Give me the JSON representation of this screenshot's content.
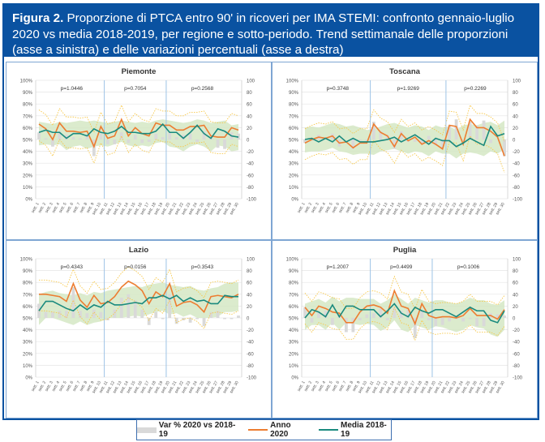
{
  "figure": {
    "label": "Figura 2.",
    "caption": " Proporzione di PTCA entro 90' in ricoveri per IMA STEMI: confronto gennaio-luglio 2020 vs media 2018-2019, per regione e sotto-periodo. Trend settimanale delle proporzioni (asse a sinistra) e delle variazioni percentuali (asse a destra)"
  },
  "colors": {
    "header_bg": "#0a52a1",
    "anno2020": "#ed7d31",
    "media": "#1a8a7e",
    "band": "#d5e8c4",
    "ci_dotted": "#f7c84a",
    "var_bar": "#d9d9d9",
    "period_line": "#9dc3e6"
  },
  "legend": {
    "items": [
      {
        "label": "Var % 2020 vs 2018-19",
        "type": "bar"
      },
      {
        "label": "Anno 2020",
        "type": "line"
      },
      {
        "label": "Media 2018-19",
        "type": "line"
      }
    ]
  },
  "chart_data": [
    {
      "type": "line",
      "title": "Piemonte",
      "left_axis": {
        "ticks": [
          "0%",
          "10%",
          "20%",
          "30%",
          "40%",
          "50%",
          "60%",
          "70%",
          "80%",
          "90%",
          "100%"
        ],
        "ylim": [
          0,
          100
        ]
      },
      "right_axis": {
        "ticks": [
          "-100",
          "-80",
          "-60",
          "-40",
          "-20",
          "0",
          "20",
          "40",
          "60",
          "80",
          "100"
        ],
        "ylim": [
          -100,
          100
        ]
      },
      "x_labels_note": "weekly date ranges, gennaio-luglio (illegible)",
      "period_breaks": [
        9,
        18
      ],
      "p_values": [
        "p=1.0446",
        "p=0.7054",
        "p=0.2568"
      ],
      "series": [
        {
          "name": "Anno 2020",
          "values": [
            63,
            59,
            50,
            64,
            57,
            57,
            56,
            57,
            44,
            61,
            51,
            53,
            67,
            53,
            60,
            55,
            53,
            64,
            62,
            62,
            58,
            58,
            61,
            61,
            62,
            53,
            52,
            52,
            60,
            58
          ]
        },
        {
          "name": "Media 2018-19",
          "values": [
            56,
            58,
            56,
            56,
            51,
            55,
            55,
            53,
            59,
            56,
            55,
            57,
            61,
            56,
            56,
            55,
            55,
            57,
            63,
            56,
            56,
            51,
            56,
            62,
            55,
            51,
            59,
            57,
            53,
            52
          ]
        },
        {
          "name": "Banda superiore",
          "values": [
            65,
            64,
            63,
            65,
            64,
            65,
            66,
            65,
            66,
            65,
            64,
            65,
            66,
            65,
            64,
            65,
            64,
            66,
            67,
            66,
            65,
            64,
            65,
            67,
            66,
            64,
            65,
            66,
            62,
            63
          ]
        },
        {
          "name": "Banda inferiore",
          "values": [
            45,
            46,
            45,
            46,
            41,
            44,
            45,
            42,
            44,
            45,
            44,
            46,
            48,
            45,
            44,
            45,
            44,
            47,
            48,
            44,
            43,
            40,
            44,
            46,
            44,
            40,
            45,
            44,
            40,
            41
          ]
        },
        {
          "name": "Var % 2020 vs 2018-19",
          "values": [
            12,
            2,
            -12,
            14,
            8,
            4,
            2,
            8,
            -28,
            10,
            -8,
            -8,
            12,
            -6,
            8,
            -6,
            -4,
            10,
            4,
            12,
            4,
            8,
            10,
            -4,
            14,
            4,
            -14,
            -16,
            12,
            10
          ]
        }
      ]
    },
    {
      "type": "line",
      "title": "Toscana",
      "left_axis": {
        "ticks": [
          "0%",
          "10%",
          "20%",
          "30%",
          "40%",
          "50%",
          "60%",
          "70%",
          "80%",
          "90%",
          "100%"
        ],
        "ylim": [
          0,
          100
        ]
      },
      "right_axis": {
        "ticks": [
          "-100",
          "-80",
          "-60",
          "-40",
          "-20",
          "0",
          "20",
          "40",
          "60",
          "80",
          "100"
        ],
        "ylim": [
          -100,
          100
        ]
      },
      "x_labels_note": "weekly date ranges, gennaio-luglio (illegible)",
      "period_breaks": [
        9,
        20
      ],
      "p_values": [
        "p=0.3748",
        "p=1.9269",
        "p=0.2269"
      ],
      "series": [
        {
          "name": "Anno 2020",
          "values": [
            47,
            50,
            52,
            51,
            53,
            47,
            48,
            43,
            47,
            47,
            63,
            56,
            53,
            44,
            55,
            49,
            52,
            46,
            49,
            46,
            42,
            62,
            61,
            46,
            67,
            60,
            60,
            57,
            52,
            36
          ]
        },
        {
          "name": "Media 2018-19",
          "values": [
            50,
            51,
            48,
            51,
            48,
            53,
            48,
            51,
            48,
            48,
            48,
            49,
            50,
            52,
            48,
            51,
            54,
            50,
            46,
            51,
            49,
            49,
            44,
            47,
            51,
            48,
            45,
            61,
            53,
            55
          ]
        },
        {
          "name": "Banda superiore",
          "values": [
            60,
            61,
            60,
            62,
            64,
            63,
            61,
            62,
            60,
            58,
            59,
            61,
            63,
            64,
            62,
            60,
            62,
            61,
            58,
            62,
            60,
            61,
            58,
            62,
            63,
            62,
            64,
            65,
            62,
            66
          ]
        },
        {
          "name": "Banda inferiore",
          "values": [
            39,
            40,
            40,
            41,
            43,
            40,
            39,
            37,
            38,
            38,
            37,
            40,
            41,
            42,
            40,
            38,
            40,
            39,
            36,
            40,
            38,
            38,
            34,
            38,
            39,
            38,
            36,
            40,
            38,
            42
          ]
        },
        {
          "name": "Var % 2020 vs 2018-19",
          "values": [
            -6,
            -2,
            8,
            0,
            10,
            -12,
            0,
            -16,
            -2,
            -2,
            30,
            14,
            6,
            -16,
            14,
            -4,
            -4,
            -8,
            6,
            -10,
            -14,
            24,
            34,
            -2,
            30,
            24,
            32,
            -6,
            0,
            -28
          ]
        }
      ]
    },
    {
      "type": "line",
      "title": "Lazio",
      "left_axis": {
        "ticks": [
          "0%",
          "10%",
          "20%",
          "30%",
          "40%",
          "50%",
          "60%",
          "70%",
          "80%",
          "90%",
          "100%"
        ],
        "ylim": [
          0,
          100
        ]
      },
      "right_axis": {
        "ticks": [
          "-100",
          "-80",
          "-60",
          "-40",
          "-20",
          "0",
          "20",
          "40",
          "60",
          "80",
          "100"
        ],
        "ylim": [
          -100,
          100
        ]
      },
      "x_labels_note": "weekly date ranges, gennaio-luglio (illegible)",
      "period_breaks": [
        9,
        18
      ],
      "p_values": [
        "p=0.4343",
        "p=0.0156",
        "p=0.3543"
      ],
      "series": [
        {
          "name": "Anno 2020",
          "values": [
            70,
            70,
            69,
            68,
            64,
            79,
            65,
            59,
            69,
            62,
            63,
            68,
            76,
            81,
            78,
            73,
            62,
            72,
            68,
            79,
            60,
            63,
            64,
            61,
            55,
            68,
            69,
            68,
            67,
            70
          ]
        },
        {
          "name": "Media 2018-19",
          "values": [
            56,
            64,
            64,
            61,
            58,
            56,
            61,
            57,
            61,
            59,
            64,
            61,
            61,
            62,
            63,
            62,
            67,
            67,
            69,
            66,
            69,
            64,
            67,
            64,
            65,
            62,
            62,
            69,
            68,
            68
          ]
        },
        {
          "name": "Banda superiore",
          "values": [
            70,
            72,
            73,
            71,
            70,
            69,
            71,
            69,
            72,
            71,
            73,
            74,
            75,
            76,
            77,
            76,
            78,
            79,
            80,
            78,
            77,
            76,
            77,
            74,
            73,
            75,
            76,
            79,
            80,
            80
          ]
        },
        {
          "name": "Banda inferiore",
          "values": [
            44,
            50,
            50,
            48,
            46,
            44,
            47,
            44,
            46,
            47,
            50,
            50,
            50,
            51,
            52,
            51,
            53,
            55,
            56,
            53,
            54,
            51,
            53,
            50,
            50,
            50,
            51,
            55,
            55,
            56
          ]
        },
        {
          "name": "Var % 2020 vs 2018-19",
          "values": [
            24,
            10,
            10,
            12,
            12,
            52,
            12,
            8,
            14,
            10,
            -4,
            14,
            34,
            40,
            30,
            14,
            -12,
            10,
            -2,
            40,
            -10,
            -4,
            -8,
            -2,
            -14,
            10,
            12,
            -2,
            -2,
            4
          ]
        }
      ]
    },
    {
      "type": "line",
      "title": "Puglia",
      "left_axis": {
        "ticks": [
          "0%",
          "10%",
          "20%",
          "30%",
          "40%",
          "50%",
          "60%",
          "70%",
          "80%",
          "90%",
          "100%"
        ],
        "ylim": [
          0,
          100
        ]
      },
      "right_axis": {
        "ticks": [
          "-100",
          "-80",
          "-60",
          "-40",
          "-20",
          "0",
          "20",
          "40",
          "60",
          "80",
          "100"
        ],
        "ylim": [
          -100,
          100
        ]
      },
      "x_labels_note": "weekly date ranges, gennaio-luglio (illegible)",
      "period_breaks": [
        9,
        18
      ],
      "p_values": [
        "p=1.2007",
        "p=0.4499",
        "p=0.1006"
      ],
      "series": [
        {
          "name": "Anno 2020",
          "values": [
            59,
            52,
            60,
            58,
            55,
            54,
            46,
            46,
            55,
            60,
            61,
            59,
            54,
            73,
            60,
            58,
            45,
            62,
            52,
            50,
            51,
            51,
            50,
            52,
            58,
            52,
            52,
            52,
            49,
            57
          ]
        },
        {
          "name": "Media 2018-19",
          "values": [
            50,
            57,
            55,
            51,
            61,
            51,
            60,
            60,
            57,
            57,
            57,
            51,
            56,
            62,
            54,
            51,
            59,
            56,
            54,
            57,
            57,
            54,
            51,
            55,
            59,
            56,
            56,
            48,
            46,
            56
          ]
        },
        {
          "name": "Banda superiore",
          "values": [
            62,
            64,
            66,
            63,
            68,
            64,
            67,
            67,
            66,
            66,
            66,
            62,
            65,
            70,
            66,
            62,
            67,
            65,
            63,
            65,
            65,
            63,
            62,
            64,
            67,
            65,
            65,
            62,
            61,
            65
          ]
        },
        {
          "name": "Banda inferiore",
          "values": [
            40,
            44,
            44,
            40,
            46,
            40,
            46,
            45,
            44,
            45,
            44,
            39,
            42,
            48,
            40,
            38,
            44,
            42,
            40,
            43,
            42,
            40,
            38,
            40,
            44,
            42,
            41,
            36,
            34,
            40
          ]
        },
        {
          "name": "Var % 2020 vs 2018-19",
          "values": [
            18,
            -8,
            10,
            12,
            -12,
            6,
            -24,
            -24,
            -4,
            6,
            8,
            16,
            -4,
            18,
            12,
            14,
            -34,
            12,
            -4,
            -14,
            -12,
            -6,
            -2,
            -6,
            -2,
            -14,
            -14,
            8,
            6,
            4
          ]
        }
      ]
    }
  ]
}
